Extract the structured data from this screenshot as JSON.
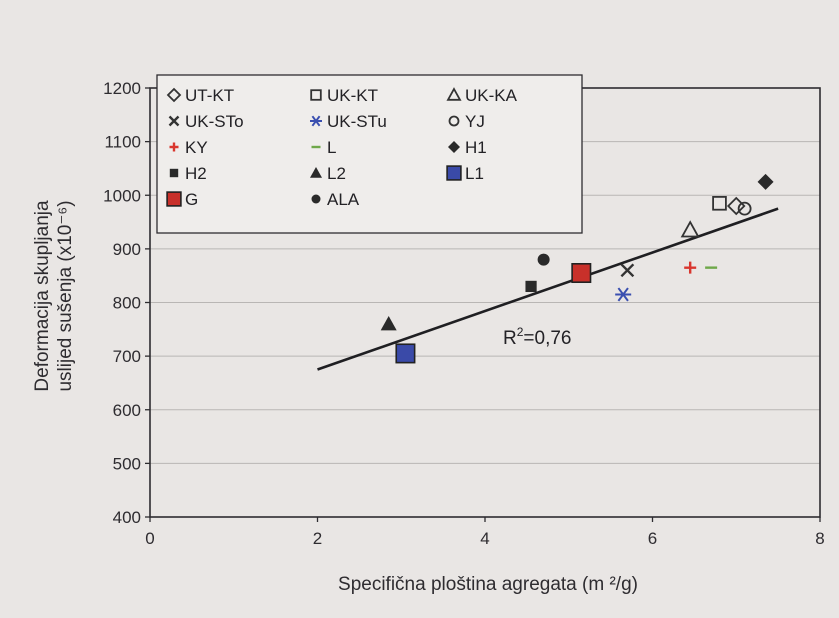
{
  "chart_data": {
    "type": "scatter",
    "xlabel": "Specifična ploština agregata (m ²/g)",
    "ylabel_line1": "Deformacija skupljanja",
    "ylabel_line2": "uslijed sušenja (x10⁻⁶)",
    "xlim": [
      0,
      8
    ],
    "ylim": [
      400,
      1200
    ],
    "xticks": [
      0,
      2,
      4,
      6,
      8
    ],
    "yticks": [
      400,
      500,
      600,
      700,
      800,
      900,
      1000,
      1100,
      1200
    ],
    "grid": "horizontal",
    "legend_position": "top-left",
    "annotation": {
      "base": "R",
      "sup": "2",
      "rest": "=0,76"
    },
    "trendline": {
      "x": [
        2.0,
        7.5
      ],
      "y": [
        675,
        975
      ]
    },
    "series": [
      {
        "name": "UT-KT",
        "marker": "diamond-open",
        "color": "#333333",
        "points": [
          [
            7.0,
            980
          ]
        ]
      },
      {
        "name": "UK-KT",
        "marker": "square-open",
        "color": "#333333",
        "points": [
          [
            6.8,
            985
          ]
        ]
      },
      {
        "name": "UK-KA",
        "marker": "triangle-open",
        "color": "#333333",
        "points": [
          [
            6.45,
            935
          ]
        ]
      },
      {
        "name": "UK-STo",
        "marker": "x",
        "color": "#333333",
        "points": [
          [
            5.7,
            860
          ]
        ]
      },
      {
        "name": "UK-STu",
        "marker": "asterisk",
        "color": "#3a4fb0",
        "points": [
          [
            5.65,
            815
          ]
        ]
      },
      {
        "name": "YJ",
        "marker": "circle-open",
        "color": "#333333",
        "points": [
          [
            7.1,
            975
          ]
        ]
      },
      {
        "name": "KY",
        "marker": "plus",
        "color": "#d9362e",
        "points": [
          [
            6.45,
            865
          ]
        ]
      },
      {
        "name": "L",
        "marker": "dash",
        "color": "#6fa84a",
        "points": [
          [
            6.7,
            865
          ]
        ]
      },
      {
        "name": "H1",
        "marker": "diamond",
        "color": "#2a2a2a",
        "points": [
          [
            7.35,
            1025
          ]
        ]
      },
      {
        "name": "H2",
        "marker": "square-small",
        "color": "#2a2a2a",
        "points": [
          [
            4.55,
            830
          ]
        ]
      },
      {
        "name": "L2",
        "marker": "triangle",
        "color": "#2a2a2a",
        "points": [
          [
            2.85,
            760
          ]
        ]
      },
      {
        "name": "L1",
        "marker": "square-big",
        "color": "#3a4aa8",
        "points": [
          [
            3.05,
            705
          ]
        ]
      },
      {
        "name": "G",
        "marker": "square-big",
        "color": "#c8302a",
        "points": [
          [
            5.15,
            855
          ]
        ]
      },
      {
        "name": "ALA",
        "marker": "circle",
        "color": "#2a2a2a",
        "points": [
          [
            4.7,
            880
          ]
        ]
      }
    ]
  }
}
